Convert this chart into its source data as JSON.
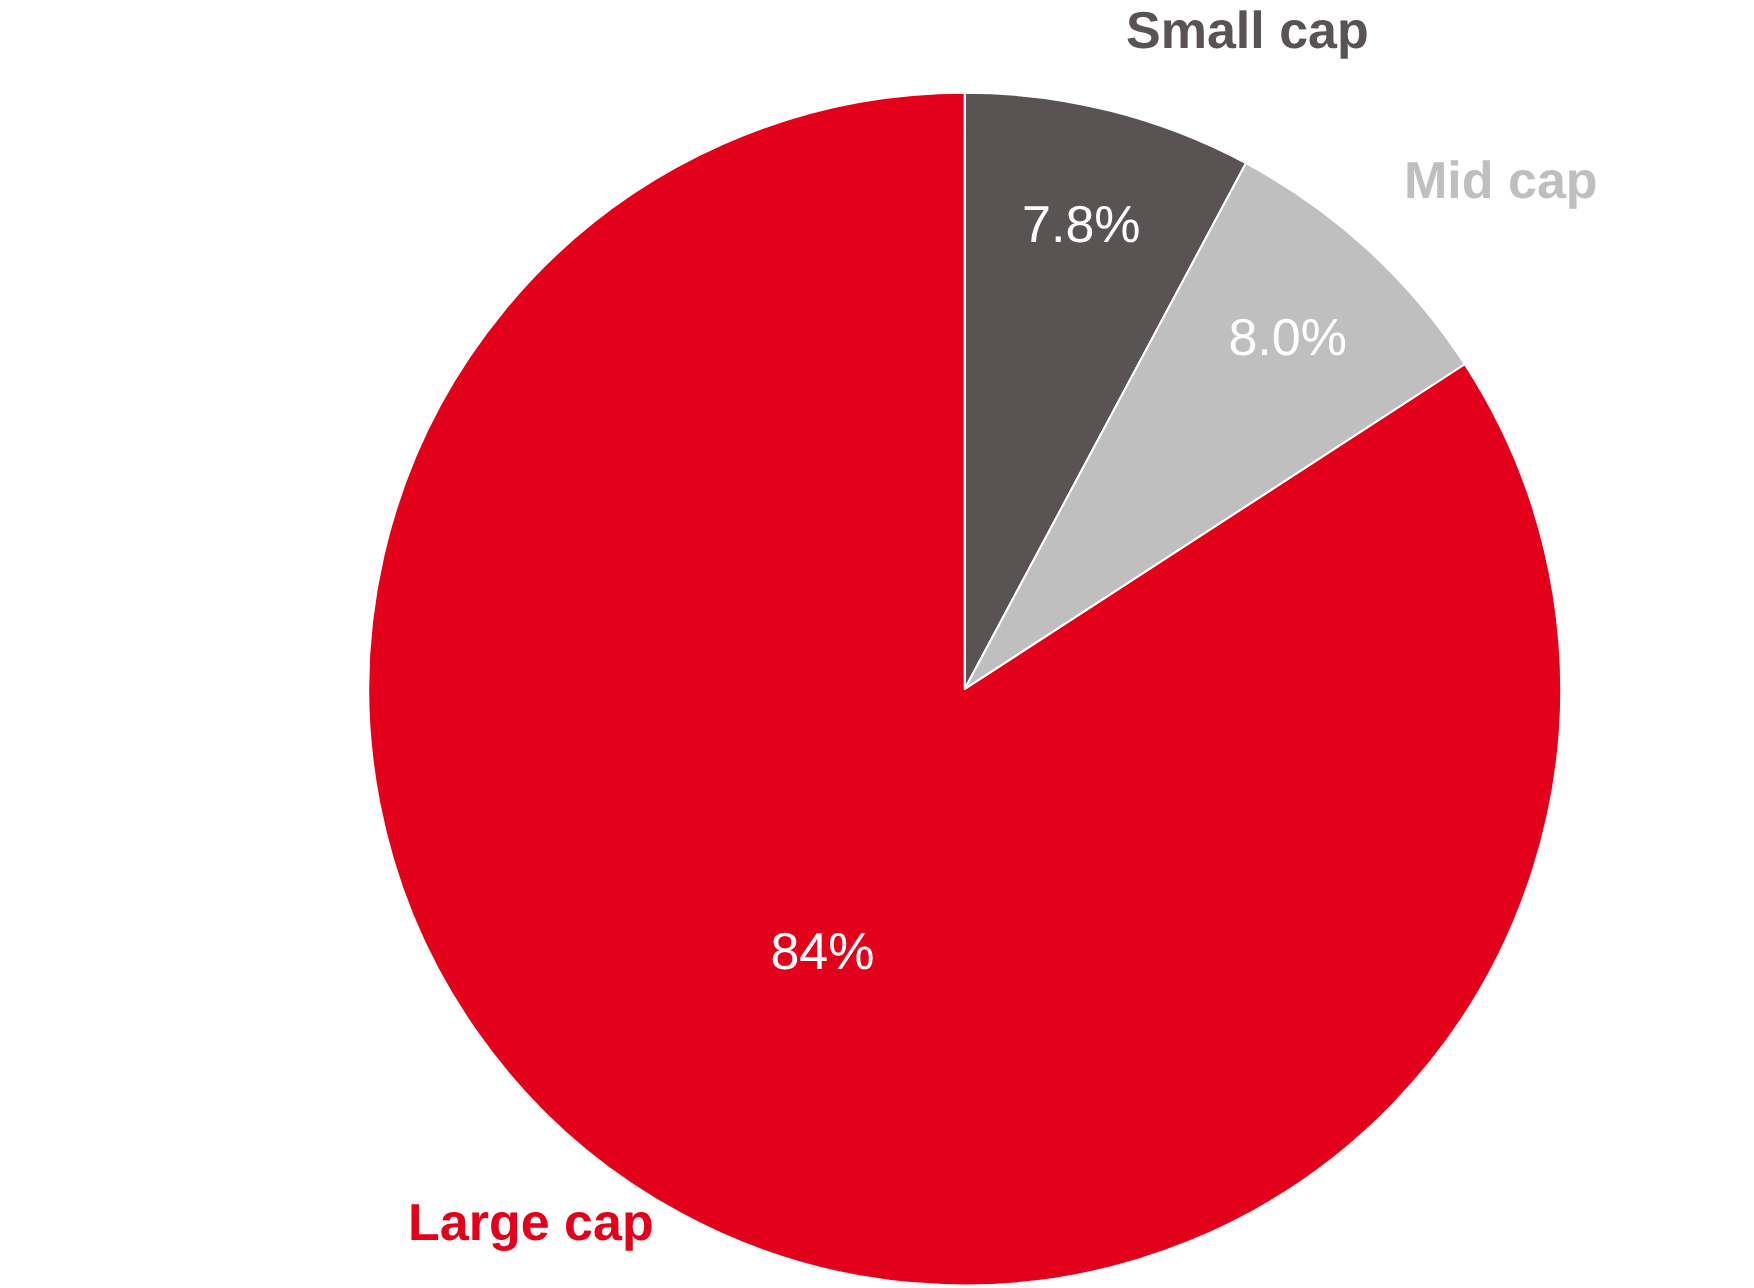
{
  "chart_data": {
    "type": "pie",
    "categories": [
      "Small cap",
      "Mid cap",
      "Large cap"
    ],
    "values": [
      7.8,
      8.0,
      84
    ],
    "value_labels": [
      "7.8%",
      "8.0%",
      "84%"
    ],
    "colors": [
      "#5a5354",
      "#c0bfbf",
      "#e2001a"
    ],
    "legend": false
  }
}
